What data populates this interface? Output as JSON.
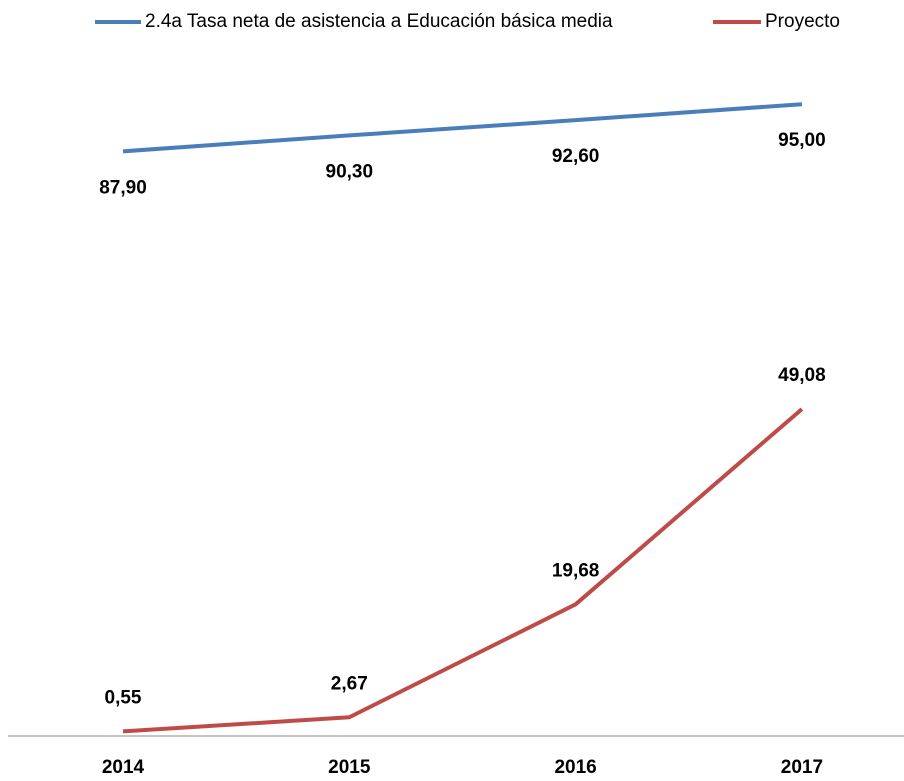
{
  "chart_data": {
    "type": "line",
    "categories": [
      "2014",
      "2015",
      "2016",
      "2017"
    ],
    "series": [
      {
        "name": "2.4a Tasa neta de asistencia a Educación básica media",
        "color": "#4a7ebb",
        "values": [
          87.9,
          90.3,
          92.6,
          95.0
        ],
        "value_labels": [
          "87,90",
          "90,30",
          "92,60",
          "95,00"
        ]
      },
      {
        "name": "Proyecto",
        "color": "#be4b48",
        "values": [
          0.55,
          2.67,
          19.68,
          49.08
        ],
        "value_labels": [
          "0,55",
          "2,67",
          "19,68",
          "49,08"
        ]
      }
    ],
    "ylim": [
      0,
      100
    ]
  }
}
